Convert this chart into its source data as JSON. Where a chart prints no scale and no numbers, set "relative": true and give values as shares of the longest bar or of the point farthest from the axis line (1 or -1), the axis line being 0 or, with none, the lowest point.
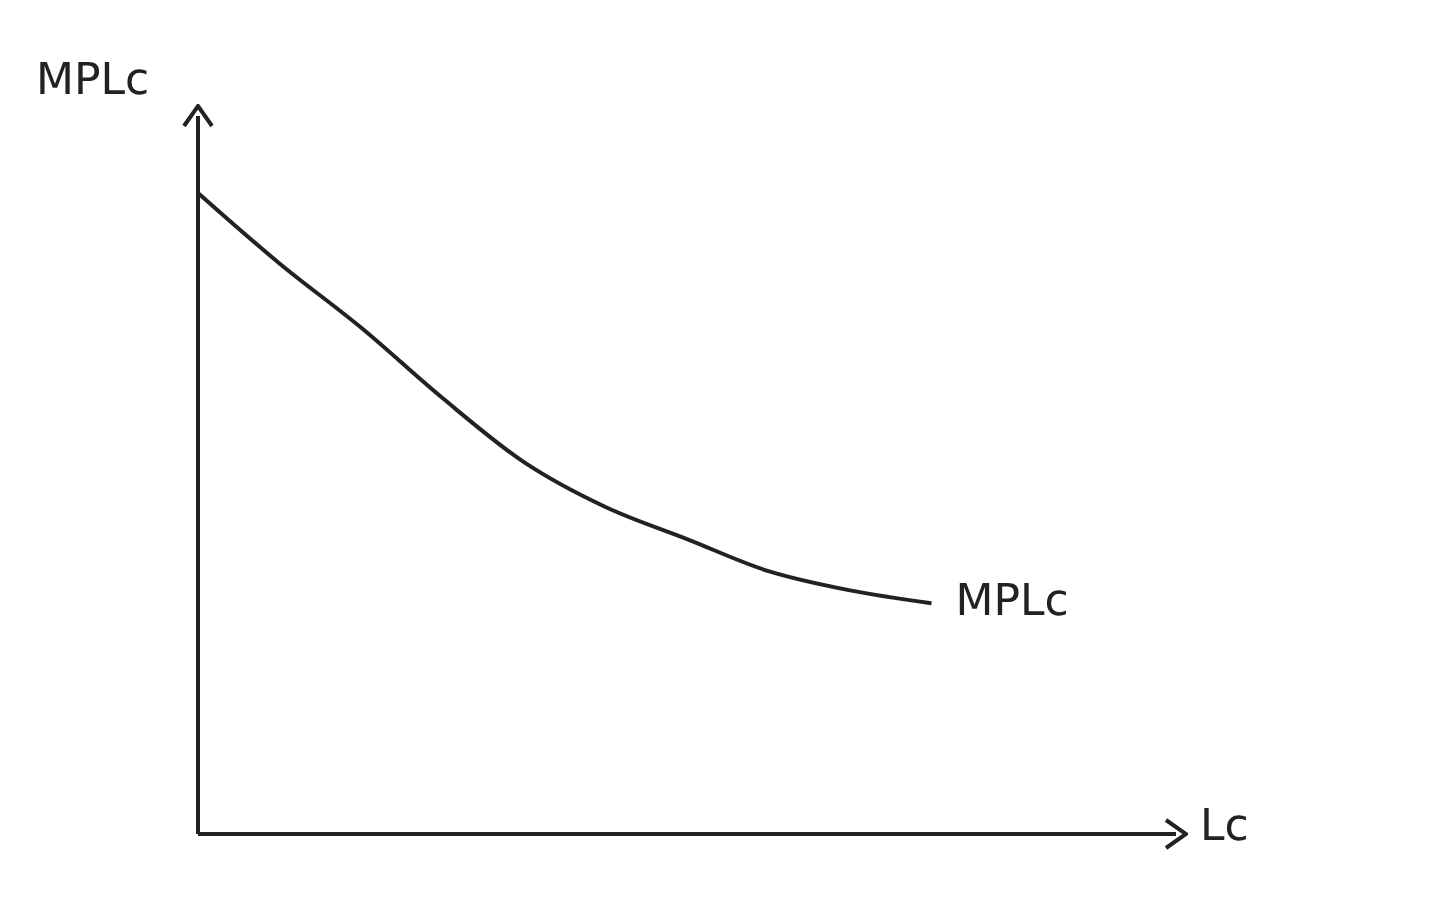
{
  "chart_data": {
    "type": "line",
    "relative": true,
    "annotations": [
      "Lc"
    ],
    "ylabel": "MPLc",
    "categories": [
      null,
      null,
      null,
      null,
      null,
      null,
      null,
      null,
      null,
      null
    ],
    "series": [
      {
        "name": "MPLc",
        "color": "#222222",
        "values": [
          1,
          0.89,
          0.79,
          0.68,
          0.58,
          0.51,
          0.46,
          0.41,
          0.38,
          0.36
        ]
      }
    ],
    "grid": false,
    "legend": false,
    "marker": "none",
    "line_style": "solid"
  }
}
